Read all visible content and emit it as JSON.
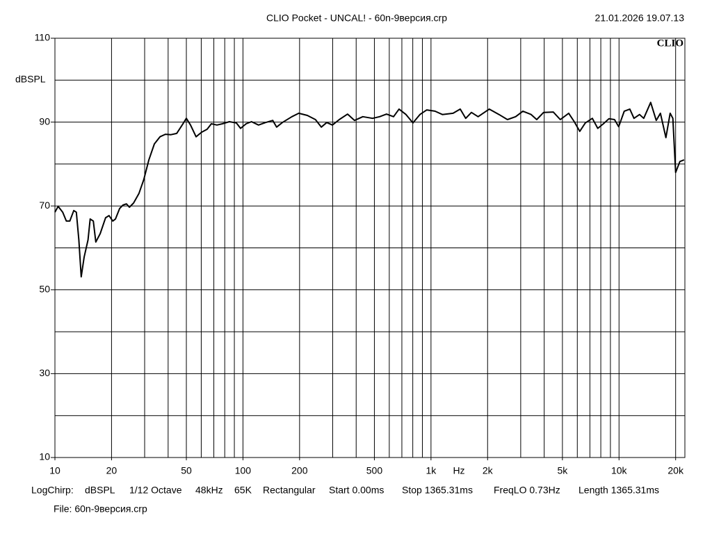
{
  "chart_data": {
    "type": "line",
    "title": "CLIO Pocket - UNCAL! - 60n-9версия.crp",
    "timestamp": "21.01.2026 19.07.13",
    "logo": "CLIO",
    "y_label": "dBSPL",
    "x_label": "Hz",
    "xscale": "log",
    "xlim": [
      10,
      22400
    ],
    "ylim": [
      10,
      110
    ],
    "xticks": [
      10,
      20,
      50,
      100,
      200,
      500,
      {
        "value": 1000,
        "label": "1k"
      },
      {
        "value": 2000,
        "label": "2k"
      },
      {
        "value": 5000,
        "label": "5k"
      },
      {
        "value": 10000,
        "label": "10k"
      },
      {
        "value": 20000,
        "label": "20k"
      }
    ],
    "yticks": [
      10,
      30,
      50,
      70,
      90,
      110
    ],
    "xgrid": [
      20,
      30,
      40,
      50,
      60,
      70,
      80,
      90,
      100,
      200,
      300,
      400,
      500,
      600,
      700,
      800,
      900,
      1000,
      2000,
      3000,
      4000,
      5000,
      6000,
      7000,
      8000,
      9000,
      10000,
      20000
    ],
    "ygrid": [
      20,
      30,
      40,
      50,
      60,
      70,
      80,
      90,
      100
    ],
    "grid": true,
    "x": [
      10,
      10.4,
      11.0,
      11.5,
      12.0,
      12.6,
      13.0,
      13.4,
      13.8,
      14.3,
      15.0,
      15.4,
      16.0,
      16.5,
      17.4,
      18.6,
      19.4,
      20.3,
      21.0,
      22.1,
      23.0,
      24.0,
      24.9,
      26.2,
      28.0,
      29.7,
      31.6,
      33.8,
      36.2,
      38.7,
      41.4,
      44.4,
      47.5,
      50.0,
      52.6,
      56.3,
      60.3,
      64.5,
      67.9,
      72.7,
      77.8,
      84.7,
      92.2,
      97.1,
      104,
      111,
      121,
      132,
      144,
      151,
      162,
      182,
      198,
      220,
      243,
      261,
      279,
      299,
      325,
      360,
      392,
      434,
      489,
      533,
      580,
      632,
      676,
      736,
      802,
      873,
      950,
      1050,
      1150,
      1310,
      1430,
      1530,
      1640,
      1780,
      2040,
      2300,
      2550,
      2820,
      3080,
      3410,
      3650,
      3970,
      4470,
      4870,
      5400,
      5780,
      6180,
      6620,
      7210,
      7710,
      8260,
      8840,
      9460,
      9960,
      10660,
      11410,
      12010,
      12860,
      13530,
      14730,
      15770,
      16600,
      17760,
      18700,
      19340,
      20010,
      21060,
      22170
    ],
    "series": [
      {
        "name": "dBSPL",
        "color": "#000000",
        "values": [
          68.5,
          69.9,
          68.5,
          66.4,
          66.4,
          68.9,
          68.5,
          61.9,
          53.1,
          57.8,
          61.9,
          66.9,
          66.4,
          61.4,
          63.4,
          67.2,
          67.7,
          66.4,
          66.9,
          69.4,
          70.2,
          70.5,
          69.7,
          70.7,
          73.0,
          76.3,
          81.0,
          84.8,
          86.5,
          87.1,
          87.0,
          87.3,
          89.3,
          90.9,
          89.3,
          86.5,
          87.6,
          88.3,
          89.6,
          89.3,
          89.6,
          90.1,
          89.8,
          88.5,
          89.6,
          90.1,
          89.3,
          89.9,
          90.4,
          88.8,
          89.9,
          91.3,
          92.1,
          91.6,
          90.6,
          88.8,
          89.9,
          89.3,
          90.6,
          91.9,
          90.4,
          91.3,
          90.9,
          91.3,
          91.9,
          91.3,
          93.1,
          91.8,
          89.8,
          91.8,
          92.9,
          92.6,
          91.8,
          92.1,
          93.1,
          90.9,
          92.3,
          91.3,
          93.1,
          91.8,
          90.6,
          91.3,
          92.6,
          91.8,
          90.6,
          92.3,
          92.4,
          90.6,
          92.1,
          90.1,
          87.8,
          89.8,
          90.9,
          88.5,
          89.6,
          90.8,
          90.6,
          88.9,
          92.6,
          93.1,
          90.9,
          91.8,
          90.9,
          94.7,
          90.4,
          92.1,
          86.3,
          92.1,
          90.9,
          78.0,
          80.6,
          81.0
        ]
      }
    ],
    "footer": [
      "LogChirp:",
      "dBSPL",
      "1/12 Octave",
      "48kHz",
      "65K",
      "Rectangular",
      "Start 0.00ms",
      "Stop 1365.31ms",
      "FreqLO 0.73Hz",
      "Length 1365.31ms"
    ],
    "file": "File: 60n-9версия.crp"
  }
}
